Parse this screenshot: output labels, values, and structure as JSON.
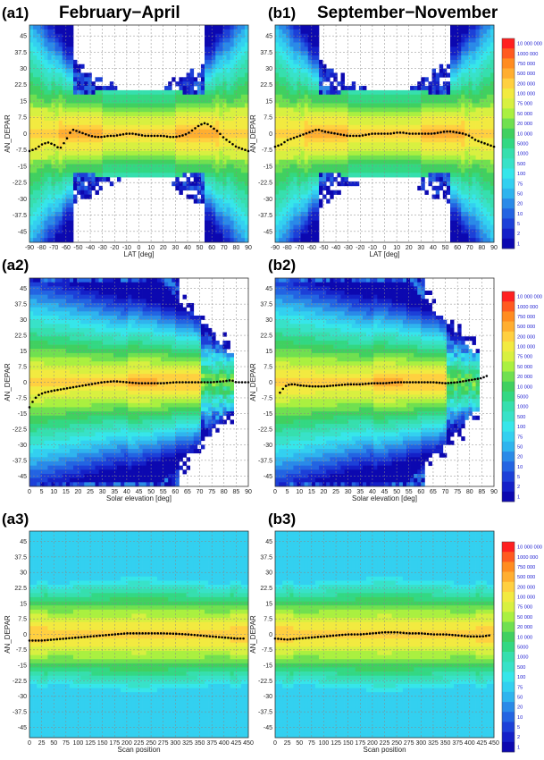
{
  "titles": {
    "left": "February−April",
    "right": "September−November"
  },
  "colorbar_labels": [
    "10 000 000",
    "1000 000",
    "750 000",
    "500 000",
    "200 000",
    "100 000",
    "75 000",
    "50 000",
    "20 000",
    "10 000",
    "5000",
    "1000",
    "500",
    "100",
    "75",
    "50",
    "20",
    "10",
    "5",
    "2",
    "1"
  ],
  "colorbar_colors": [
    "#ff2020",
    "#ff5a20",
    "#ff8c20",
    "#ffae30",
    "#ffd040",
    "#f2ea40",
    "#d8f040",
    "#aaf040",
    "#70e050",
    "#40d060",
    "#33d883",
    "#36dfae",
    "#38e2c8",
    "#36e6ea",
    "#33d0f0",
    "#2fb4ee",
    "#2a8ae8",
    "#2364e2",
    "#1c40d8",
    "#1420c8",
    "#0c08b0"
  ],
  "chart_data": [
    {
      "panel": "(a1)",
      "type": "heatmap",
      "xlabel": "LAT [deg]",
      "ylabel": "AN_DEPAR",
      "xlim": [
        -90,
        90
      ],
      "ylim": [
        -50,
        50
      ],
      "xticks": [
        "-90",
        "-80",
        "-70",
        "-60",
        "-50",
        "-40",
        "-30",
        "-20",
        "-10",
        "0",
        "10",
        "20",
        "30",
        "40",
        "50",
        "60",
        "70",
        "80",
        "90"
      ],
      "yticks": [
        "45",
        "37.5",
        "30",
        "22.5",
        "15",
        "7.5",
        "0",
        "-7.5",
        "-15",
        "-22.5",
        "-30",
        "-37.5",
        "-45"
      ],
      "mean_x": [
        -90,
        -85,
        -80,
        -75,
        -70,
        -65,
        -60,
        -55,
        -50,
        -45,
        -40,
        -35,
        -30,
        -25,
        -20,
        -15,
        -10,
        -5,
        0,
        5,
        10,
        15,
        20,
        25,
        30,
        35,
        40,
        45,
        50,
        55,
        60,
        65,
        70,
        75,
        80,
        85,
        90
      ],
      "mean_y": [
        -8,
        -7,
        -5,
        -4,
        -5,
        -7,
        -3,
        2,
        1,
        0,
        -1,
        -1.5,
        -1.5,
        -1,
        -1,
        -0.5,
        0,
        0,
        -0.5,
        -1,
        -1,
        -1,
        -1,
        -1.5,
        -1.5,
        -1,
        0,
        2,
        4,
        5,
        3,
        1,
        -2,
        -4,
        -6,
        -7,
        -8
      ]
    },
    {
      "panel": "(b1)",
      "type": "heatmap",
      "xlabel": "LAT [deg]",
      "ylabel": "AN_DEPAR",
      "xlim": [
        -90,
        90
      ],
      "ylim": [
        -50,
        50
      ],
      "xticks": [
        "-90",
        "-80",
        "-70",
        "-60",
        "-50",
        "-40",
        "-30",
        "-20",
        "-10",
        "0",
        "10",
        "20",
        "30",
        "40",
        "50",
        "60",
        "70",
        "80",
        "90"
      ],
      "yticks": [
        "45",
        "37.5",
        "30",
        "22.5",
        "15",
        "7.5",
        "0",
        "-7.5",
        "-15",
        "-22.5",
        "-30",
        "-37.5",
        "-45"
      ],
      "mean_x": [
        -90,
        -85,
        -80,
        -75,
        -70,
        -65,
        -60,
        -55,
        -50,
        -45,
        -40,
        -35,
        -30,
        -25,
        -20,
        -15,
        -10,
        -5,
        0,
        5,
        10,
        15,
        20,
        25,
        30,
        35,
        40,
        45,
        50,
        55,
        60,
        65,
        70,
        75,
        80,
        85,
        90
      ],
      "mean_y": [
        -6,
        -5,
        -3,
        -2,
        -1,
        0,
        1,
        2,
        1,
        0.5,
        0,
        -0.5,
        -1,
        -1,
        -1,
        -0.5,
        0,
        0,
        0,
        0,
        0.5,
        0.5,
        0,
        0,
        0,
        0,
        0,
        0.5,
        1,
        1,
        0.5,
        0,
        -1,
        -3,
        -4,
        -5,
        -6
      ]
    },
    {
      "panel": "(a2)",
      "type": "heatmap",
      "xlabel": "Solar elevation [deg]",
      "ylabel": "AN_DEPAR",
      "xlim": [
        0,
        90
      ],
      "ylim": [
        -50,
        50
      ],
      "xticks": [
        "0",
        "5",
        "10",
        "15",
        "20",
        "25",
        "30",
        "35",
        "40",
        "45",
        "50",
        "55",
        "60",
        "65",
        "70",
        "75",
        "80",
        "85",
        "90"
      ],
      "yticks": [
        "45",
        "37.5",
        "30",
        "22.5",
        "15",
        "7.5",
        "0",
        "-7.5",
        "-15",
        "-22.5",
        "-30",
        "-37.5",
        "-45"
      ],
      "mean_x": [
        0,
        2,
        4,
        6,
        8,
        10,
        15,
        20,
        25,
        30,
        35,
        40,
        45,
        50,
        55,
        60,
        65,
        70,
        75,
        80,
        83,
        85,
        88,
        90
      ],
      "mean_y": [
        -12,
        -8,
        -6,
        -5,
        -4.5,
        -4,
        -3,
        -2,
        -1,
        0,
        0.5,
        0,
        -0.5,
        -0.5,
        -0.5,
        0,
        0,
        0,
        0,
        0.5,
        1,
        0,
        0,
        0
      ]
    },
    {
      "panel": "(b2)",
      "type": "heatmap",
      "xlabel": "Solar elevation [deg]",
      "ylabel": "AN_DEPAR",
      "xlim": [
        0,
        90
      ],
      "ylim": [
        -50,
        50
      ],
      "xticks": [
        "0",
        "5",
        "10",
        "15",
        "20",
        "25",
        "30",
        "35",
        "40",
        "45",
        "50",
        "55",
        "60",
        "65",
        "70",
        "75",
        "80",
        "85",
        "90"
      ],
      "yticks": [
        "45",
        "37.5",
        "30",
        "22.5",
        "15",
        "7.5",
        "0",
        "-7.5",
        "-15",
        "-22.5",
        "-30",
        "-37.5",
        "-45"
      ],
      "mean_x": [
        2,
        4,
        6,
        8,
        10,
        15,
        20,
        25,
        30,
        35,
        40,
        45,
        50,
        55,
        60,
        65,
        70,
        75,
        80,
        85,
        87
      ],
      "mean_y": [
        -5,
        -2,
        -1,
        -1,
        -1.5,
        -2,
        -2,
        -1.5,
        -1,
        -1,
        -0.5,
        -0.5,
        0,
        0,
        0,
        0,
        -0.5,
        0,
        1,
        2,
        3
      ]
    },
    {
      "panel": "(a3)",
      "type": "heatmap",
      "xlabel": "Scan position",
      "ylabel": "AN_DEPAR",
      "xlim": [
        0,
        450
      ],
      "ylim": [
        -50,
        50
      ],
      "xticks": [
        "0",
        "25",
        "50",
        "75",
        "100",
        "125",
        "150",
        "175",
        "200",
        "225",
        "250",
        "275",
        "300",
        "325",
        "350",
        "375",
        "400",
        "425",
        "450"
      ],
      "yticks": [
        "45",
        "37.5",
        "30",
        "22.5",
        "15",
        "7.5",
        "0",
        "-7.5",
        "-15",
        "-22.5",
        "-30",
        "-37.5",
        "-45"
      ],
      "mean_x": [
        0,
        25,
        50,
        75,
        100,
        125,
        150,
        175,
        200,
        225,
        250,
        275,
        300,
        325,
        350,
        375,
        400,
        425,
        440
      ],
      "mean_y": [
        -3,
        -3,
        -2.5,
        -2,
        -1.5,
        -1,
        -0.5,
        0,
        0.5,
        0.5,
        0.5,
        0.5,
        0.3,
        0,
        -0.5,
        -1,
        -1.5,
        -2,
        -2
      ]
    },
    {
      "panel": "(b3)",
      "type": "heatmap",
      "xlabel": "Scan position",
      "ylabel": "AN_DEPAR",
      "xlim": [
        0,
        450
      ],
      "ylim": [
        -50,
        50
      ],
      "xticks": [
        "0",
        "25",
        "50",
        "75",
        "100",
        "125",
        "150",
        "175",
        "200",
        "225",
        "250",
        "275",
        "300",
        "325",
        "350",
        "375",
        "400",
        "425",
        "450"
      ],
      "yticks": [
        "45",
        "37.5",
        "30",
        "22.5",
        "15",
        "7.5",
        "0",
        "-7.5",
        "-15",
        "-22.5",
        "-30",
        "-37.5",
        "-45"
      ],
      "mean_x": [
        0,
        25,
        50,
        75,
        100,
        125,
        150,
        175,
        200,
        225,
        250,
        275,
        300,
        325,
        350,
        375,
        400,
        425,
        440
      ],
      "mean_y": [
        -2,
        -2.5,
        -2,
        -1.5,
        -1,
        -0.5,
        0,
        0,
        0.5,
        1,
        1,
        0.5,
        0.5,
        0,
        0,
        -0.5,
        -1,
        -1,
        -0.5
      ]
    }
  ]
}
